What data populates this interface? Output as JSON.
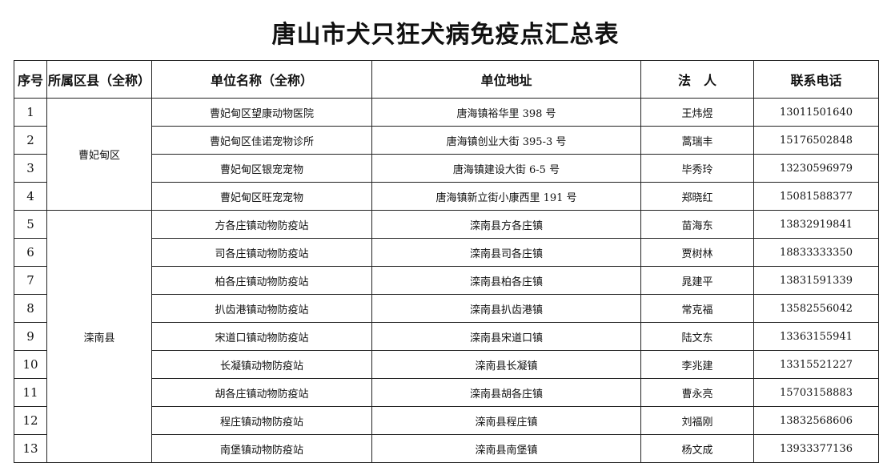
{
  "title": "唐山市犬只狂犬病免疫点汇总表",
  "table": {
    "headers": [
      "序号",
      "所属区县（全称）",
      "单位名称（全称）",
      "单位地址",
      "法　人",
      "联系电话"
    ],
    "groups": [
      {
        "district": "曹妃甸区",
        "rows": [
          [
            "1",
            "曹妃甸区望康动物医院",
            "唐海镇裕华里 398 号",
            "王炜煜",
            "13011501640"
          ],
          [
            "2",
            "曹妃甸区佳诺宠物诊所",
            "唐海镇创业大街 395-3 号",
            "蒿瑞丰",
            "15176502848"
          ],
          [
            "3",
            "曹妃甸区银宠宠物",
            "唐海镇建设大街 6-5 号",
            "毕秀玲",
            "13230596979"
          ],
          [
            "4",
            "曹妃甸区旺宠宠物",
            "唐海镇新立街小康西里 191 号",
            "郑晓红",
            "15081588377"
          ]
        ]
      },
      {
        "district": "滦南县",
        "rows": [
          [
            "5",
            "方各庄镇动物防疫站",
            "滦南县方各庄镇",
            "苗海东",
            "13832919841"
          ],
          [
            "6",
            "司各庄镇动物防疫站",
            "滦南县司各庄镇",
            "贾树林",
            "18833333350"
          ],
          [
            "7",
            "柏各庄镇动物防疫站",
            "滦南县柏各庄镇",
            "晁建平",
            "13831591339"
          ],
          [
            "8",
            "扒齿港镇动物防疫站",
            "滦南县扒齿港镇",
            "常克福",
            "13582556042"
          ],
          [
            "9",
            "宋道口镇动物防疫站",
            "滦南县宋道口镇",
            "陆文东",
            "13363155941"
          ],
          [
            "10",
            "长凝镇动物防疫站",
            "滦南县长凝镇",
            "李兆建",
            "13315521227"
          ],
          [
            "11",
            "胡各庄镇动物防疫站",
            "滦南县胡各庄镇",
            "曹永亮",
            "15703158883"
          ],
          [
            "12",
            "程庄镇动物防疫站",
            "滦南县程庄镇",
            "刘福刚",
            "13832568606"
          ],
          [
            "13",
            "南堡镇动物防疫站",
            "滦南县南堡镇",
            "杨文成",
            "13933377136"
          ]
        ]
      }
    ]
  }
}
